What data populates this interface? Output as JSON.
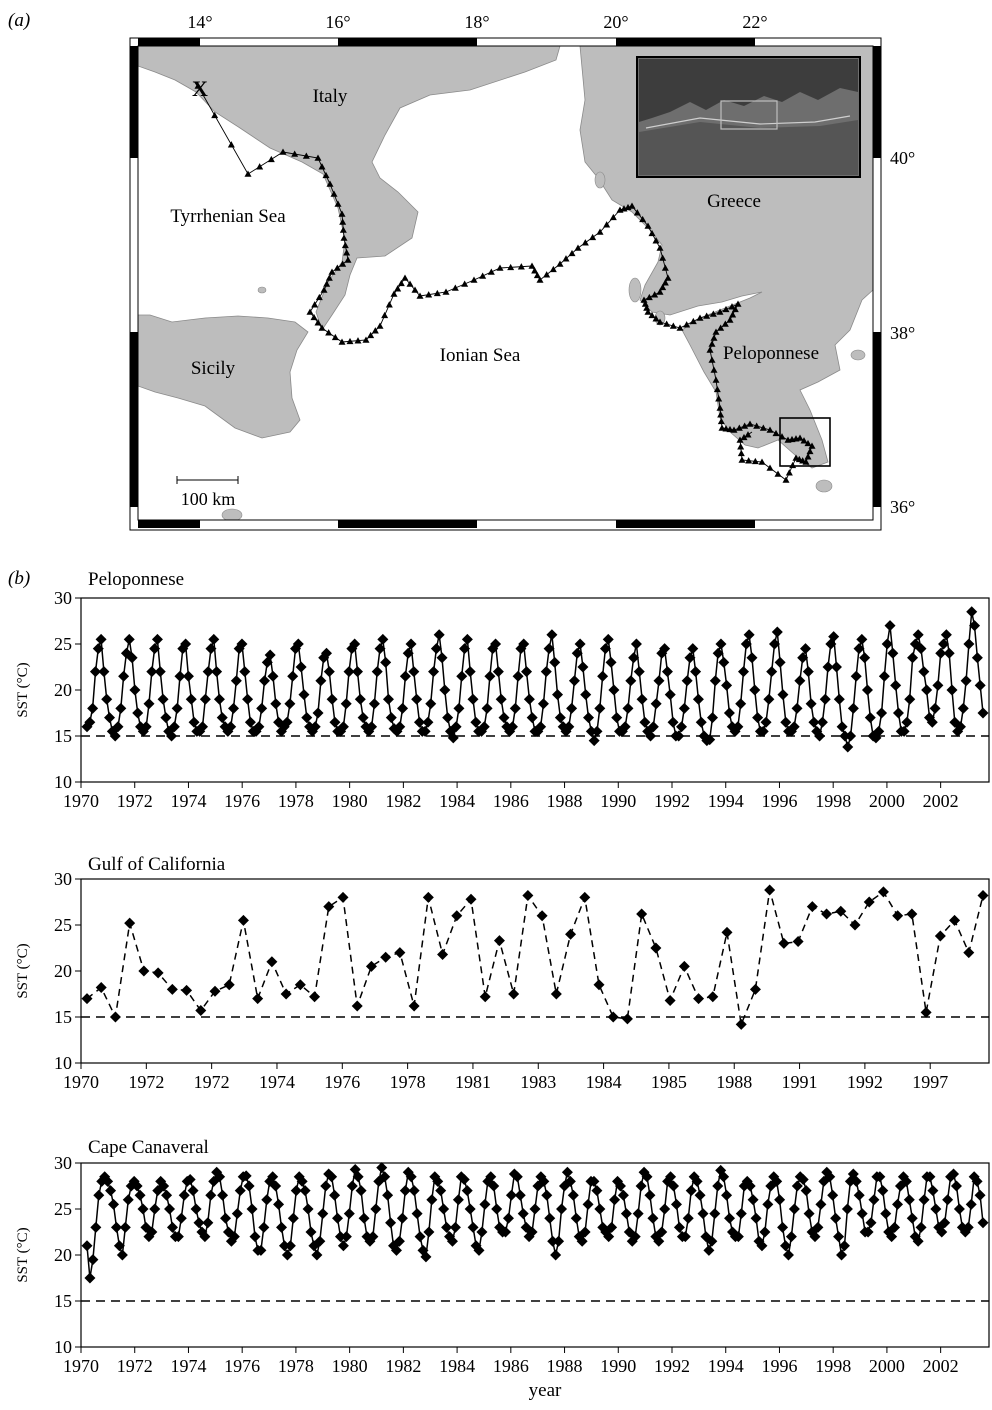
{
  "panel_a": {
    "label": "(a)",
    "lon_labels": [
      "14°",
      "16°",
      "18°",
      "20°",
      "22°"
    ],
    "lat_labels": [
      "40°",
      "38°",
      "36°"
    ],
    "places": {
      "italy": "Italy",
      "greece": "Greece",
      "tyrrhenian": "Tyrrhenian Sea",
      "sicily": "Sicily",
      "ionian": "Ionian Sea",
      "peloponnese": "Peloponnese"
    },
    "release_marker": "X",
    "scale_bar": "100 km"
  },
  "panel_b": {
    "label": "(b)"
  },
  "chart_data": [
    {
      "type": "line",
      "title": "Peloponnese",
      "ylabel": "SST (°C)",
      "xlabel": "",
      "ylim": [
        10,
        30
      ],
      "yticks": [
        10,
        15,
        20,
        25,
        30
      ],
      "xticks": [
        "1970",
        "1972",
        "1974",
        "1976",
        "1978",
        "1980",
        "1982",
        "1984",
        "1986",
        "1988",
        "1990",
        "1992",
        "1994",
        "1996",
        "1998",
        "2000",
        "2002"
      ],
      "reference_line": 15,
      "line_style": "solid",
      "x_start_year": 1970,
      "y": [
        16.0,
        16.5,
        18.0,
        22.0,
        24.5,
        25.5,
        22.0,
        19.0,
        17.0,
        15.5,
        15.0,
        16.0,
        18.0,
        21.5,
        24.0,
        25.5,
        23.5,
        20.0,
        17.5,
        16.0,
        15.5,
        16.0,
        18.5,
        22.0,
        24.5,
        25.5,
        22.0,
        19.0,
        17.0,
        15.5,
        15.0,
        16.0,
        18.0,
        21.5,
        24.5,
        25.0,
        21.5,
        19.0,
        16.5,
        15.5,
        15.5,
        16.0,
        19.0,
        22.0,
        24.5,
        25.5,
        22.0,
        19.0,
        17.0,
        16.0,
        15.5,
        16.0,
        18.0,
        21.0,
        24.5,
        25.0,
        22.0,
        19.0,
        16.5,
        15.5,
        15.5,
        16.0,
        18.0,
        21.0,
        23.0,
        23.8,
        21.5,
        18.5,
        16.5,
        15.5,
        16.0,
        16.5,
        18.5,
        21.5,
        24.5,
        25.0,
        22.5,
        19.5,
        17.0,
        16.0,
        15.5,
        16.0,
        17.5,
        21.0,
        23.5,
        24.0,
        22.0,
        19.0,
        16.5,
        15.5,
        15.5,
        16.0,
        18.5,
        22.0,
        24.5,
        25.0,
        22.0,
        19.0,
        17.0,
        16.0,
        15.5,
        16.0,
        18.5,
        22.0,
        24.5,
        25.5,
        23.0,
        19.0,
        17.0,
        15.8,
        15.5,
        16.0,
        18.0,
        21.5,
        24.0,
        25.0,
        22.0,
        19.0,
        16.5,
        15.5,
        15.5,
        16.5,
        18.5,
        22.0,
        24.5,
        26.0,
        23.5,
        20.0,
        17.0,
        15.5,
        14.8,
        16.0,
        18.0,
        21.5,
        24.5,
        25.5,
        22.0,
        19.0,
        16.5,
        15.5,
        15.5,
        16.0,
        18.0,
        21.5,
        24.5,
        25.0,
        22.0,
        19.0,
        17.0,
        16.0,
        15.5,
        16.0,
        18.0,
        21.5,
        24.5,
        25.0,
        22.0,
        19.0,
        17.0,
        15.5,
        15.5,
        16.0,
        18.5,
        22.0,
        24.5,
        26.0,
        23.0,
        19.5,
        17.0,
        16.0,
        15.5,
        16.0,
        18.0,
        21.0,
        24.0,
        25.0,
        22.5,
        19.5,
        17.0,
        15.5,
        14.5,
        15.5,
        18.0,
        21.5,
        24.5,
        25.5,
        23.0,
        20.0,
        17.0,
        15.5,
        15.5,
        16.0,
        18.0,
        21.0,
        23.5,
        25.0,
        22.0,
        19.0,
        16.5,
        15.5,
        15.0,
        16.0,
        18.5,
        21.0,
        24.0,
        24.5,
        22.0,
        19.5,
        16.5,
        15.0,
        15.0,
        16.0,
        18.0,
        21.0,
        23.5,
        24.5,
        22.0,
        19.0,
        16.5,
        15.0,
        14.5,
        14.6,
        17.0,
        21.0,
        24.0,
        25.0,
        23.0,
        20.5,
        17.5,
        16.0,
        15.5,
        16.0,
        18.5,
        22.0,
        25.0,
        26.0,
        23.5,
        20.0,
        17.0,
        15.5,
        15.5,
        16.5,
        19.0,
        22.0,
        25.0,
        26.3,
        23.0,
        19.5,
        16.5,
        15.5,
        15.5,
        16.0,
        18.0,
        21.0,
        23.5,
        24.5,
        22.0,
        18.5,
        16.5,
        15.5,
        15.0,
        16.5,
        19.0,
        22.5,
        25.0,
        25.8,
        22.5,
        19.0,
        16.0,
        15.0,
        13.8,
        15.0,
        18.0,
        21.5,
        24.5,
        25.5,
        23.5,
        20.0,
        17.0,
        15.0,
        14.8,
        15.5,
        17.5,
        21.5,
        25.0,
        27.0,
        24.0,
        20.5,
        17.5,
        15.5,
        15.5,
        16.5,
        19.0,
        23.5,
        25.0,
        26.0,
        24.5,
        22.0,
        20.0,
        17.0,
        16.5,
        18.0,
        20.5,
        24.0,
        25.0,
        26.0,
        24.0,
        20.0,
        16.5,
        15.5,
        16.0,
        18.0,
        21.0,
        25.0,
        28.5,
        27.0,
        23.5,
        20.5,
        17.5
      ]
    },
    {
      "type": "line",
      "title": "Gulf of California",
      "ylabel": "SST (°C)",
      "xlabel": "",
      "ylim": [
        10,
        30
      ],
      "yticks": [
        10,
        15,
        20,
        25,
        30
      ],
      "xticks": [
        "1970",
        "1972",
        "1972",
        "1974",
        "1976",
        "1978",
        "1981",
        "1983",
        "1984",
        "1985",
        "1988",
        "1991",
        "1992",
        "1997"
      ],
      "reference_line": 15,
      "line_style": "dashed",
      "y": [
        17.0,
        18.2,
        15.0,
        25.2,
        20.0,
        19.8,
        18.0,
        17.9,
        15.7,
        17.8,
        18.5,
        25.5,
        17.0,
        21.0,
        17.5,
        18.5,
        17.2,
        27.0,
        28.0,
        16.2,
        20.5,
        21.5,
        22.0,
        16.2,
        28.0,
        21.8,
        26.0,
        27.8,
        17.2,
        23.3,
        17.5,
        28.2,
        26.0,
        17.5,
        24.0,
        28.0,
        18.5,
        15.0,
        14.8,
        26.2,
        22.5,
        16.8,
        20.5,
        17.0,
        17.2,
        24.2,
        14.2,
        18.0,
        28.8,
        23.0,
        23.2,
        27.0,
        26.2,
        26.5,
        25.0,
        27.5,
        28.6,
        26.0,
        26.2,
        15.5,
        23.8,
        25.5,
        22.0,
        28.2
      ]
    },
    {
      "type": "line",
      "title": "Cape Canaveral",
      "ylabel": "SST (°C)",
      "xlabel": "year",
      "ylim": [
        10,
        30
      ],
      "yticks": [
        10,
        15,
        20,
        25,
        30
      ],
      "xticks": [
        "1970",
        "1972",
        "1974",
        "1976",
        "1978",
        "1980",
        "1982",
        "1984",
        "1986",
        "1988",
        "1990",
        "1992",
        "1994",
        "1996",
        "1998",
        "2000",
        "2002"
      ],
      "reference_line": 15,
      "line_style": "solid",
      "x_start_year": 1970,
      "y": [
        21.0,
        17.5,
        19.5,
        23.0,
        26.5,
        28.0,
        28.5,
        28.0,
        27.0,
        25.5,
        23.0,
        21.0,
        20.0,
        23.0,
        26.0,
        27.5,
        28.0,
        27.5,
        26.5,
        25.0,
        23.0,
        22.0,
        22.5,
        25.0,
        27.0,
        28.0,
        27.5,
        26.5,
        25.0,
        23.0,
        22.0,
        22.0,
        24.0,
        26.5,
        28.0,
        28.2,
        27.0,
        25.0,
        23.5,
        22.5,
        22.0,
        23.5,
        26.5,
        28.0,
        29.0,
        28.5,
        26.5,
        24.0,
        22.5,
        21.5,
        22.0,
        24.5,
        27.0,
        28.5,
        28.6,
        27.5,
        25.0,
        22.0,
        20.5,
        20.5,
        23.0,
        26.0,
        28.0,
        28.5,
        27.5,
        25.5,
        23.0,
        21.0,
        20.0,
        21.0,
        24.0,
        27.0,
        28.5,
        28.0,
        27.0,
        25.0,
        22.5,
        21.0,
        20.0,
        21.5,
        24.5,
        27.5,
        28.8,
        28.5,
        26.5,
        24.0,
        22.0,
        21.0,
        22.0,
        24.5,
        27.5,
        29.3,
        28.5,
        27.0,
        24.0,
        22.0,
        21.5,
        22.0,
        25.0,
        28.0,
        29.5,
        28.5,
        26.5,
        23.5,
        21.0,
        20.5,
        21.5,
        24.0,
        27.0,
        29.0,
        28.5,
        27.0,
        24.5,
        22.0,
        20.5,
        19.8,
        22.5,
        26.0,
        28.5,
        28.0,
        27.0,
        25.0,
        23.0,
        22.0,
        21.5,
        23.0,
        26.0,
        28.5,
        28.2,
        27.0,
        25.0,
        23.0,
        21.0,
        20.5,
        22.5,
        25.5,
        28.0,
        28.5,
        27.5,
        25.0,
        23.0,
        22.5,
        22.5,
        24.0,
        26.5,
        28.8,
        28.5,
        26.5,
        24.5,
        23.0,
        22.0,
        22.5,
        25.0,
        27.5,
        28.5,
        28.0,
        26.5,
        24.0,
        21.5,
        20.0,
        21.5,
        25.0,
        27.5,
        29.0,
        28.0,
        26.5,
        24.0,
        22.0,
        21.5,
        22.5,
        25.5,
        28.0,
        28.0,
        27.0,
        25.0,
        23.0,
        22.5,
        22.0,
        23.0,
        26.0,
        28.0,
        27.5,
        26.5,
        24.5,
        22.5,
        21.5,
        22.0,
        24.5,
        27.5,
        29.0,
        28.5,
        26.5,
        24.0,
        22.0,
        21.5,
        22.5,
        25.0,
        28.0,
        28.5,
        27.5,
        25.5,
        23.0,
        22.0,
        22.0,
        24.0,
        27.0,
        28.5,
        28.0,
        26.5,
        24.5,
        22.0,
        20.5,
        21.5,
        24.5,
        27.5,
        29.2,
        28.5,
        26.5,
        24.0,
        22.5,
        22.0,
        22.0,
        24.5,
        27.5,
        28.0,
        27.5,
        26.0,
        24.0,
        21.5,
        21.0,
        22.5,
        25.5,
        27.5,
        28.5,
        28.0,
        26.0,
        23.0,
        21.0,
        20.0,
        22.0,
        25.0,
        27.5,
        28.5,
        28.2,
        27.0,
        24.5,
        22.5,
        22.0,
        23.0,
        25.5,
        28.0,
        29.0,
        28.5,
        26.5,
        24.0,
        22.0,
        20.0,
        21.0,
        25.0,
        28.0,
        28.8,
        28.0,
        26.5,
        24.5,
        22.5,
        22.5,
        23.5,
        26.0,
        28.5,
        28.5,
        27.0,
        24.5,
        22.5,
        22.0,
        23.0,
        25.5,
        27.5,
        28.5,
        28.0,
        26.0,
        24.0,
        22.0,
        21.5,
        23.0,
        26.0,
        28.5,
        28.5,
        27.0,
        25.0,
        23.0,
        22.5,
        23.5,
        26.0,
        28.5,
        28.8,
        27.5,
        25.0,
        23.0,
        22.5,
        23.0,
        25.5,
        28.5,
        28.0,
        26.5,
        23.5
      ]
    }
  ]
}
